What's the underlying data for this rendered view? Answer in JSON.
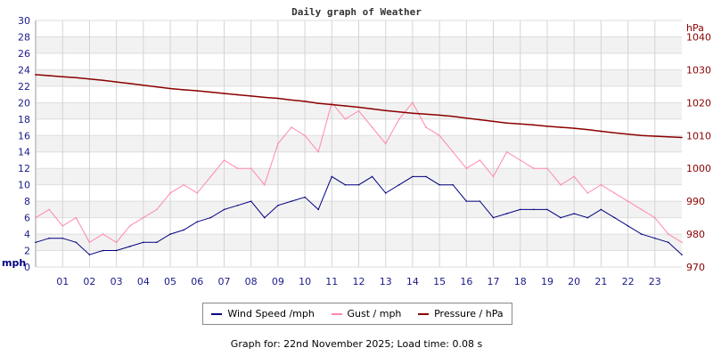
{
  "chart_data": {
    "type": "line",
    "title": "Daily graph of Weather",
    "left_axis": {
      "unit_label": "mph",
      "range": [
        0,
        30
      ],
      "ticks": [
        0,
        2,
        4,
        6,
        8,
        10,
        12,
        14,
        16,
        18,
        20,
        22,
        24,
        26,
        28,
        30
      ]
    },
    "right_axis": {
      "unit_label": "hPa",
      "range": [
        970,
        1045
      ],
      "ticks": [
        970,
        980,
        990,
        1000,
        1010,
        1020,
        1030,
        1040
      ]
    },
    "x_axis": {
      "range": [
        0,
        24
      ],
      "tick_labels": [
        "01",
        "02",
        "03",
        "04",
        "05",
        "06",
        "07",
        "08",
        "09",
        "10",
        "11",
        "12",
        "13",
        "14",
        "15",
        "16",
        "17",
        "18",
        "19",
        "20",
        "21",
        "22",
        "23"
      ]
    },
    "grid": true,
    "legend_position": "bottom",
    "x": [
      0,
      0.5,
      1,
      1.5,
      2,
      2.5,
      3,
      3.5,
      4,
      4.5,
      5,
      5.5,
      6,
      6.5,
      7,
      7.5,
      8,
      8.5,
      9,
      9.5,
      10,
      10.5,
      11,
      11.5,
      12,
      12.5,
      13,
      13.5,
      14,
      14.5,
      15,
      15.5,
      16,
      16.5,
      17,
      17.5,
      18,
      18.5,
      19,
      19.5,
      20,
      20.5,
      21,
      21.5,
      22,
      22.5,
      23,
      23.5,
      24
    ],
    "series": [
      {
        "name": "Wind Speed /mph",
        "color": "#000080",
        "axis": "left",
        "values": [
          3,
          3.5,
          3.5,
          3,
          1.5,
          2,
          2,
          2.5,
          3,
          3,
          4,
          4.5,
          5.5,
          6,
          7,
          7.5,
          8,
          6,
          7.5,
          8,
          8.5,
          7,
          11,
          10,
          10,
          11,
          9,
          10,
          11,
          11,
          10,
          10,
          8,
          8,
          6,
          6.5,
          7,
          7,
          7,
          6,
          6.5,
          6,
          7,
          6,
          5,
          4,
          3.5,
          3,
          1.5
        ]
      },
      {
        "name": "Gust / mph",
        "color": "#ff88aa",
        "axis": "left",
        "values": [
          6,
          7,
          5,
          6,
          3,
          4,
          3,
          5,
          6,
          7,
          9,
          10,
          9,
          11,
          13,
          12,
          12,
          10,
          15,
          17,
          16,
          14,
          20,
          18,
          19,
          17,
          15,
          18,
          20,
          17,
          16,
          14,
          12,
          13,
          11,
          14,
          13,
          12,
          12,
          10,
          11,
          9,
          10,
          9,
          8,
          7,
          6,
          4,
          3
        ]
      },
      {
        "name": "Pressure / hPa",
        "color": "#8b0000",
        "axis": "right",
        "values": [
          1028.5,
          1028.2,
          1027.9,
          1027.6,
          1027.2,
          1026.8,
          1026.3,
          1025.8,
          1025.3,
          1024.8,
          1024.3,
          1023.9,
          1023.6,
          1023.2,
          1022.8,
          1022.4,
          1022,
          1021.6,
          1021.3,
          1020.8,
          1020.4,
          1019.8,
          1019.4,
          1019,
          1018.6,
          1018.1,
          1017.6,
          1017.2,
          1016.8,
          1016.5,
          1016.2,
          1015.8,
          1015.3,
          1014.8,
          1014.3,
          1013.8,
          1013.5,
          1013.2,
          1012.8,
          1012.5,
          1012.2,
          1011.8,
          1011.3,
          1010.8,
          1010.4,
          1010,
          1009.8,
          1009.6,
          1009.4
        ]
      }
    ]
  },
  "footer": "Graph for: 22nd November 2025; Load time: 0.08 s"
}
